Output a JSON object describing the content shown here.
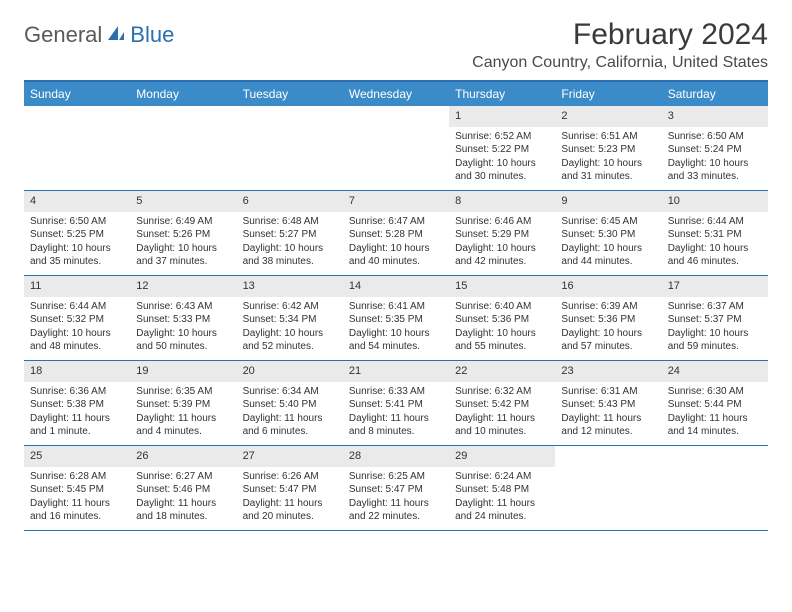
{
  "logo": {
    "part1": "General",
    "part2": "Blue"
  },
  "title": "February 2024",
  "location": "Canyon Country, California, United States",
  "day_headers": [
    "Sunday",
    "Monday",
    "Tuesday",
    "Wednesday",
    "Thursday",
    "Friday",
    "Saturday"
  ],
  "colors": {
    "header_bg": "#3b8bc9",
    "border": "#2b6fb0",
    "daynum_bg": "#eaeaea",
    "logo_gray": "#5a5a5a",
    "logo_blue": "#2b6fb0"
  },
  "weeks": [
    [
      {
        "n": "",
        "sunrise": "",
        "sunset": "",
        "daylight": ""
      },
      {
        "n": "",
        "sunrise": "",
        "sunset": "",
        "daylight": ""
      },
      {
        "n": "",
        "sunrise": "",
        "sunset": "",
        "daylight": ""
      },
      {
        "n": "",
        "sunrise": "",
        "sunset": "",
        "daylight": ""
      },
      {
        "n": "1",
        "sunrise": "Sunrise: 6:52 AM",
        "sunset": "Sunset: 5:22 PM",
        "daylight": "Daylight: 10 hours and 30 minutes."
      },
      {
        "n": "2",
        "sunrise": "Sunrise: 6:51 AM",
        "sunset": "Sunset: 5:23 PM",
        "daylight": "Daylight: 10 hours and 31 minutes."
      },
      {
        "n": "3",
        "sunrise": "Sunrise: 6:50 AM",
        "sunset": "Sunset: 5:24 PM",
        "daylight": "Daylight: 10 hours and 33 minutes."
      }
    ],
    [
      {
        "n": "4",
        "sunrise": "Sunrise: 6:50 AM",
        "sunset": "Sunset: 5:25 PM",
        "daylight": "Daylight: 10 hours and 35 minutes."
      },
      {
        "n": "5",
        "sunrise": "Sunrise: 6:49 AM",
        "sunset": "Sunset: 5:26 PM",
        "daylight": "Daylight: 10 hours and 37 minutes."
      },
      {
        "n": "6",
        "sunrise": "Sunrise: 6:48 AM",
        "sunset": "Sunset: 5:27 PM",
        "daylight": "Daylight: 10 hours and 38 minutes."
      },
      {
        "n": "7",
        "sunrise": "Sunrise: 6:47 AM",
        "sunset": "Sunset: 5:28 PM",
        "daylight": "Daylight: 10 hours and 40 minutes."
      },
      {
        "n": "8",
        "sunrise": "Sunrise: 6:46 AM",
        "sunset": "Sunset: 5:29 PM",
        "daylight": "Daylight: 10 hours and 42 minutes."
      },
      {
        "n": "9",
        "sunrise": "Sunrise: 6:45 AM",
        "sunset": "Sunset: 5:30 PM",
        "daylight": "Daylight: 10 hours and 44 minutes."
      },
      {
        "n": "10",
        "sunrise": "Sunrise: 6:44 AM",
        "sunset": "Sunset: 5:31 PM",
        "daylight": "Daylight: 10 hours and 46 minutes."
      }
    ],
    [
      {
        "n": "11",
        "sunrise": "Sunrise: 6:44 AM",
        "sunset": "Sunset: 5:32 PM",
        "daylight": "Daylight: 10 hours and 48 minutes."
      },
      {
        "n": "12",
        "sunrise": "Sunrise: 6:43 AM",
        "sunset": "Sunset: 5:33 PM",
        "daylight": "Daylight: 10 hours and 50 minutes."
      },
      {
        "n": "13",
        "sunrise": "Sunrise: 6:42 AM",
        "sunset": "Sunset: 5:34 PM",
        "daylight": "Daylight: 10 hours and 52 minutes."
      },
      {
        "n": "14",
        "sunrise": "Sunrise: 6:41 AM",
        "sunset": "Sunset: 5:35 PM",
        "daylight": "Daylight: 10 hours and 54 minutes."
      },
      {
        "n": "15",
        "sunrise": "Sunrise: 6:40 AM",
        "sunset": "Sunset: 5:36 PM",
        "daylight": "Daylight: 10 hours and 55 minutes."
      },
      {
        "n": "16",
        "sunrise": "Sunrise: 6:39 AM",
        "sunset": "Sunset: 5:36 PM",
        "daylight": "Daylight: 10 hours and 57 minutes."
      },
      {
        "n": "17",
        "sunrise": "Sunrise: 6:37 AM",
        "sunset": "Sunset: 5:37 PM",
        "daylight": "Daylight: 10 hours and 59 minutes."
      }
    ],
    [
      {
        "n": "18",
        "sunrise": "Sunrise: 6:36 AM",
        "sunset": "Sunset: 5:38 PM",
        "daylight": "Daylight: 11 hours and 1 minute."
      },
      {
        "n": "19",
        "sunrise": "Sunrise: 6:35 AM",
        "sunset": "Sunset: 5:39 PM",
        "daylight": "Daylight: 11 hours and 4 minutes."
      },
      {
        "n": "20",
        "sunrise": "Sunrise: 6:34 AM",
        "sunset": "Sunset: 5:40 PM",
        "daylight": "Daylight: 11 hours and 6 minutes."
      },
      {
        "n": "21",
        "sunrise": "Sunrise: 6:33 AM",
        "sunset": "Sunset: 5:41 PM",
        "daylight": "Daylight: 11 hours and 8 minutes."
      },
      {
        "n": "22",
        "sunrise": "Sunrise: 6:32 AM",
        "sunset": "Sunset: 5:42 PM",
        "daylight": "Daylight: 11 hours and 10 minutes."
      },
      {
        "n": "23",
        "sunrise": "Sunrise: 6:31 AM",
        "sunset": "Sunset: 5:43 PM",
        "daylight": "Daylight: 11 hours and 12 minutes."
      },
      {
        "n": "24",
        "sunrise": "Sunrise: 6:30 AM",
        "sunset": "Sunset: 5:44 PM",
        "daylight": "Daylight: 11 hours and 14 minutes."
      }
    ],
    [
      {
        "n": "25",
        "sunrise": "Sunrise: 6:28 AM",
        "sunset": "Sunset: 5:45 PM",
        "daylight": "Daylight: 11 hours and 16 minutes."
      },
      {
        "n": "26",
        "sunrise": "Sunrise: 6:27 AM",
        "sunset": "Sunset: 5:46 PM",
        "daylight": "Daylight: 11 hours and 18 minutes."
      },
      {
        "n": "27",
        "sunrise": "Sunrise: 6:26 AM",
        "sunset": "Sunset: 5:47 PM",
        "daylight": "Daylight: 11 hours and 20 minutes."
      },
      {
        "n": "28",
        "sunrise": "Sunrise: 6:25 AM",
        "sunset": "Sunset: 5:47 PM",
        "daylight": "Daylight: 11 hours and 22 minutes."
      },
      {
        "n": "29",
        "sunrise": "Sunrise: 6:24 AM",
        "sunset": "Sunset: 5:48 PM",
        "daylight": "Daylight: 11 hours and 24 minutes."
      },
      {
        "n": "",
        "sunrise": "",
        "sunset": "",
        "daylight": ""
      },
      {
        "n": "",
        "sunrise": "",
        "sunset": "",
        "daylight": ""
      }
    ]
  ]
}
